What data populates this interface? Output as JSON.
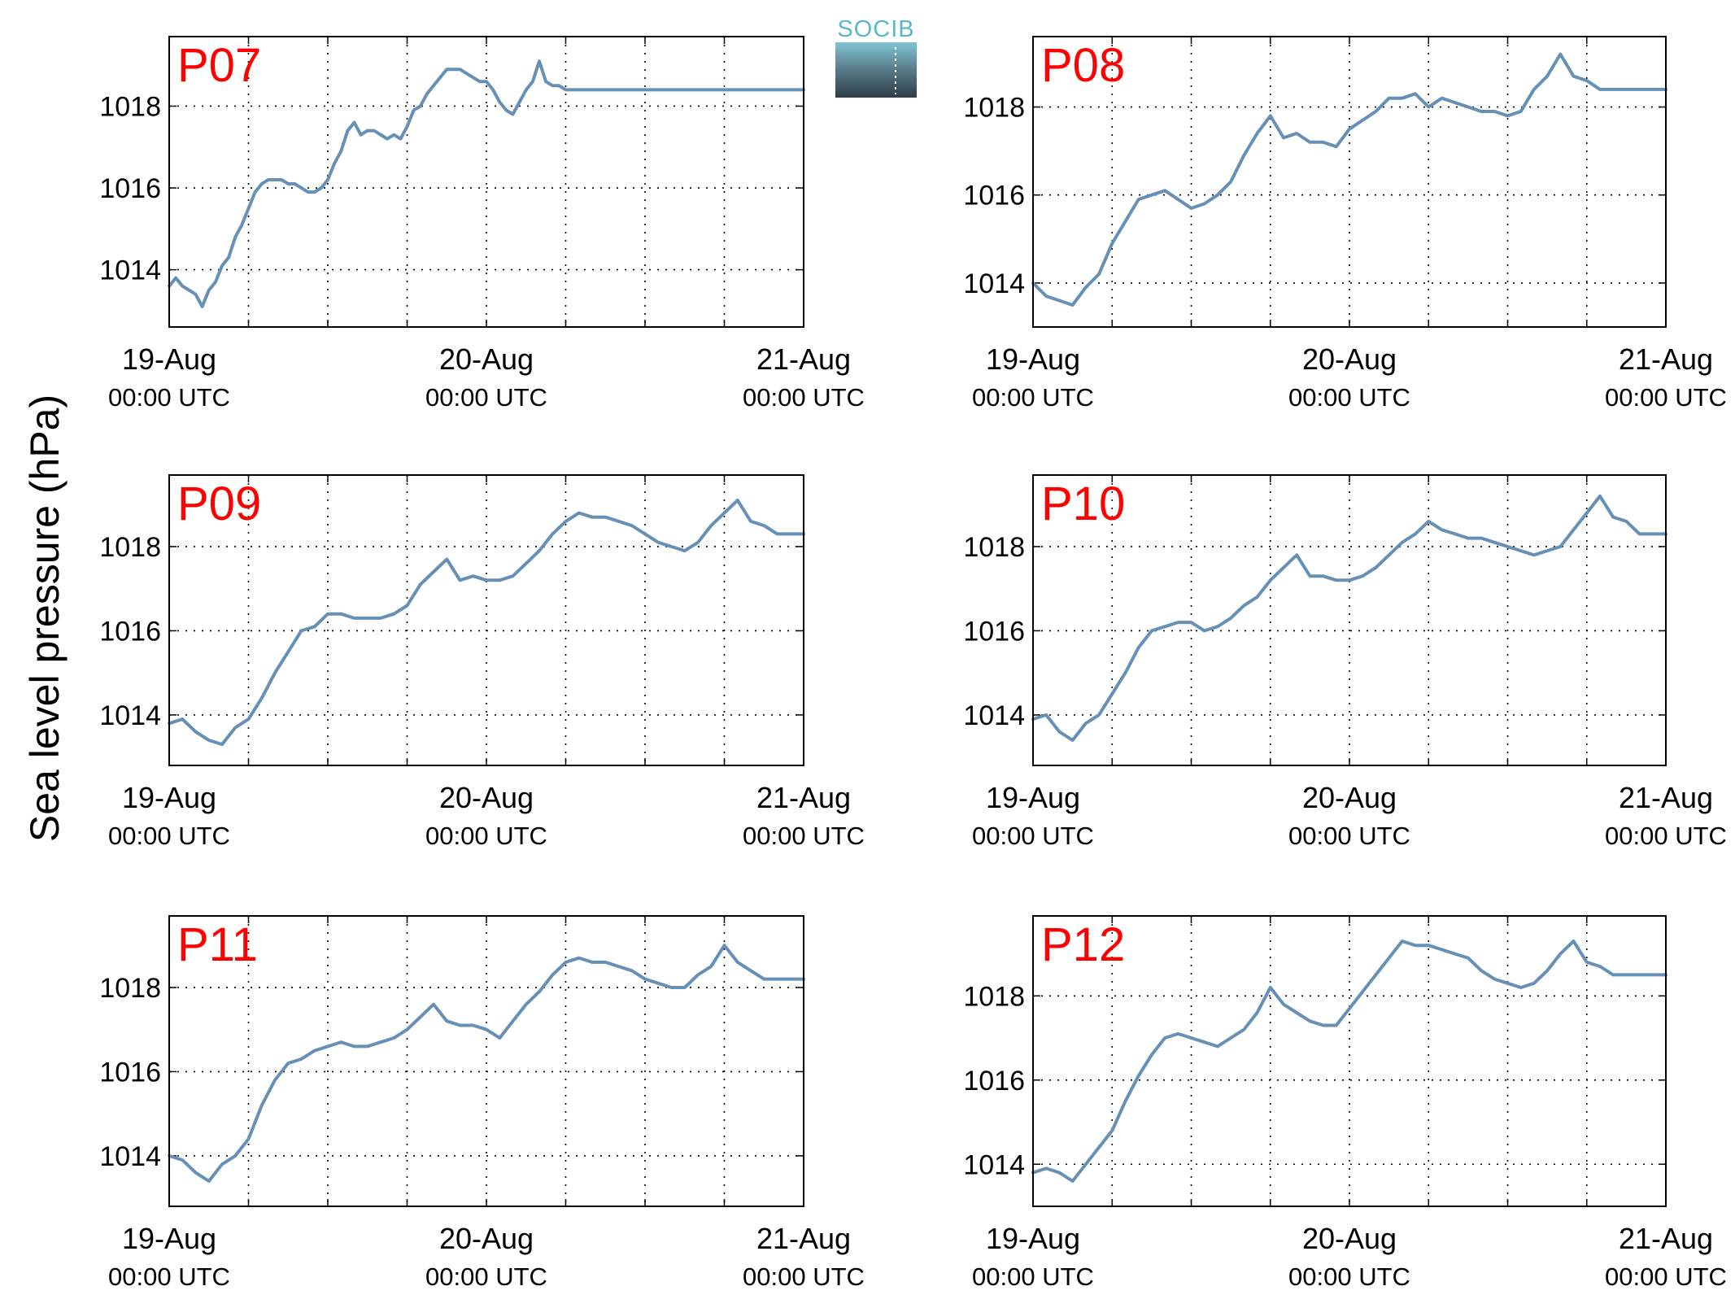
{
  "figure": {
    "ylabel": "Sea level pressure (hPa)",
    "logo_text": "SOCIB",
    "line_color": "#6690b5",
    "panel_label_color": "#ff0000",
    "grid": true
  },
  "chart_data": [
    {
      "type": "line",
      "title": "P07",
      "xlim": [
        0,
        48
      ],
      "ylim": [
        1012.6,
        1019.7
      ],
      "xticks": [
        0,
        24,
        48
      ],
      "xticklabels": [
        [
          "19-Aug",
          "00:00 UTC"
        ],
        [
          "20-Aug",
          "00:00 UTC"
        ],
        [
          "21-Aug",
          "00:00 UTC"
        ]
      ],
      "yticks": [
        1014,
        1016,
        1018
      ],
      "yticklabels": [
        "1014",
        "1016",
        "1018"
      ],
      "series": [
        {
          "x": [
            0,
            0.5,
            1,
            1.5,
            2,
            2.5,
            3,
            3.5,
            4,
            4.5,
            5,
            5.5,
            6,
            6.5,
            7,
            7.5,
            8,
            8.5,
            9,
            9.5,
            10,
            10.5,
            11,
            11.5,
            12,
            12.5,
            13,
            13.5,
            14,
            14.5,
            15,
            15.5,
            16,
            16.5,
            17,
            17.5,
            18,
            18.5,
            19,
            19.5,
            20,
            20.5,
            21,
            21.5,
            22,
            22.5,
            23,
            23.5,
            24,
            24.5,
            25,
            25.5,
            26,
            26.5,
            27,
            27.5,
            28,
            28.5,
            29,
            29.5,
            30,
            30.5,
            31,
            31.5,
            32,
            32.5,
            33,
            33.5,
            34,
            34.5,
            35,
            35.5,
            36,
            36.5,
            37,
            37.5,
            38,
            38.5,
            39,
            39.5,
            40,
            40.5,
            41,
            41.5,
            42,
            42.5,
            43,
            43.5,
            44,
            44.5,
            45,
            45.5,
            46,
            46.5,
            47,
            47.5,
            48
          ],
          "y": [
            1013.6,
            1013.8,
            1013.6,
            1013.5,
            1013.4,
            1013.1,
            1013.5,
            1013.7,
            1014.1,
            1014.3,
            1014.8,
            1015.1,
            1015.5,
            1015.9,
            1016.1,
            1016.2,
            1016.2,
            1016.2,
            1016.1,
            1016.1,
            1016.0,
            1015.9,
            1015.9,
            1016.0,
            1016.2,
            1016.6,
            1016.9,
            1017.4,
            1017.6,
            1017.3,
            1017.4,
            1017.4,
            1017.3,
            1017.2,
            1017.3,
            1017.2,
            1017.5,
            1017.9,
            1018.0,
            1018.3,
            1018.5,
            1018.7,
            1018.9,
            1018.9,
            1018.9,
            1018.8,
            1018.7,
            1018.6,
            1018.6,
            1018.4,
            1018.1,
            1017.9,
            1017.8,
            1018.1,
            1018.4,
            1018.6,
            1019.1,
            1018.6,
            1018.5,
            1018.5,
            1018.4,
            1018.4,
            1018.4,
            1018.4,
            1018.4,
            1018.4,
            1018.4,
            1018.4,
            1018.4,
            1018.4,
            1018.4,
            1018.4,
            1018.4,
            1018.4,
            1018.4,
            1018.4,
            1018.4,
            1018.4,
            1018.4,
            1018.4,
            1018.4,
            1018.4,
            1018.4,
            1018.4,
            1018.4,
            1018.4,
            1018.4,
            1018.4,
            1018.4,
            1018.4,
            1018.4,
            1018.4,
            1018.4,
            1018.4,
            1018.4,
            1018.4,
            1018.4
          ]
        }
      ]
    },
    {
      "type": "line",
      "title": "P08",
      "xlim": [
        0,
        48
      ],
      "ylim": [
        1013.0,
        1019.6
      ],
      "xticks": [
        0,
        24,
        48
      ],
      "xticklabels": [
        [
          "19-Aug",
          "00:00 UTC"
        ],
        [
          "20-Aug",
          "00:00 UTC"
        ],
        [
          "21-Aug",
          "00:00 UTC"
        ]
      ],
      "yticks": [
        1014,
        1016,
        1018
      ],
      "yticklabels": [
        "1014",
        "1016",
        "1018"
      ],
      "series": [
        {
          "x": [
            0,
            1,
            2,
            3,
            4,
            5,
            6,
            7,
            8,
            9,
            10,
            11,
            12,
            13,
            14,
            15,
            16,
            17,
            18,
            19,
            20,
            21,
            22,
            23,
            24,
            25,
            26,
            27,
            28,
            29,
            30,
            31,
            32,
            33,
            34,
            35,
            36,
            37,
            38,
            39,
            40,
            41,
            42,
            43,
            44,
            45,
            46,
            47,
            48
          ],
          "y": [
            1014.0,
            1013.7,
            1013.6,
            1013.5,
            1013.9,
            1014.2,
            1014.9,
            1015.4,
            1015.9,
            1016.0,
            1016.1,
            1015.9,
            1015.7,
            1015.8,
            1016.0,
            1016.3,
            1016.9,
            1017.4,
            1017.8,
            1017.3,
            1017.4,
            1017.2,
            1017.2,
            1017.1,
            1017.5,
            1017.7,
            1017.9,
            1018.2,
            1018.2,
            1018.3,
            1018.0,
            1018.2,
            1018.1,
            1018.0,
            1017.9,
            1017.9,
            1017.8,
            1017.9,
            1018.4,
            1018.7,
            1019.2,
            1018.7,
            1018.6,
            1018.4,
            1018.4,
            1018.4,
            1018.4,
            1018.4,
            1018.4
          ]
        }
      ]
    },
    {
      "type": "line",
      "title": "P09",
      "xlim": [
        0,
        48
      ],
      "ylim": [
        1012.8,
        1019.7
      ],
      "xticks": [
        0,
        24,
        48
      ],
      "xticklabels": [
        [
          "19-Aug",
          "00:00 UTC"
        ],
        [
          "20-Aug",
          "00:00 UTC"
        ],
        [
          "21-Aug",
          "00:00 UTC"
        ]
      ],
      "yticks": [
        1014,
        1016,
        1018
      ],
      "yticklabels": [
        "1014",
        "1016",
        "1018"
      ],
      "series": [
        {
          "x": [
            0,
            1,
            2,
            3,
            4,
            5,
            6,
            7,
            8,
            9,
            10,
            11,
            12,
            13,
            14,
            15,
            16,
            17,
            18,
            19,
            20,
            21,
            22,
            23,
            24,
            25,
            26,
            27,
            28,
            29,
            30,
            31,
            32,
            33,
            34,
            35,
            36,
            37,
            38,
            39,
            40,
            41,
            42,
            43,
            44,
            45,
            46,
            47,
            48
          ],
          "y": [
            1013.8,
            1013.9,
            1013.6,
            1013.4,
            1013.3,
            1013.7,
            1013.9,
            1014.4,
            1015.0,
            1015.5,
            1016.0,
            1016.1,
            1016.4,
            1016.4,
            1016.3,
            1016.3,
            1016.3,
            1016.4,
            1016.6,
            1017.1,
            1017.4,
            1017.7,
            1017.2,
            1017.3,
            1017.2,
            1017.2,
            1017.3,
            1017.6,
            1017.9,
            1018.3,
            1018.6,
            1018.8,
            1018.7,
            1018.7,
            1018.6,
            1018.5,
            1018.3,
            1018.1,
            1018.0,
            1017.9,
            1018.1,
            1018.5,
            1018.8,
            1019.1,
            1018.6,
            1018.5,
            1018.3,
            1018.3,
            1018.3
          ]
        }
      ]
    },
    {
      "type": "line",
      "title": "P10",
      "xlim": [
        0,
        48
      ],
      "ylim": [
        1012.8,
        1019.7
      ],
      "xticks": [
        0,
        24,
        48
      ],
      "xticklabels": [
        [
          "19-Aug",
          "00:00 UTC"
        ],
        [
          "20-Aug",
          "00:00 UTC"
        ],
        [
          "21-Aug",
          "00:00 UTC"
        ]
      ],
      "yticks": [
        1014,
        1016,
        1018
      ],
      "yticklabels": [
        "1014",
        "1016",
        "1018"
      ],
      "series": [
        {
          "x": [
            0,
            1,
            2,
            3,
            4,
            5,
            6,
            7,
            8,
            9,
            10,
            11,
            12,
            13,
            14,
            15,
            16,
            17,
            18,
            19,
            20,
            21,
            22,
            23,
            24,
            25,
            26,
            27,
            28,
            29,
            30,
            31,
            32,
            33,
            34,
            35,
            36,
            37,
            38,
            39,
            40,
            41,
            42,
            43,
            44,
            45,
            46,
            47,
            48
          ],
          "y": [
            1013.9,
            1014.0,
            1013.6,
            1013.4,
            1013.8,
            1014.0,
            1014.5,
            1015.0,
            1015.6,
            1016.0,
            1016.1,
            1016.2,
            1016.2,
            1016.0,
            1016.1,
            1016.3,
            1016.6,
            1016.8,
            1017.2,
            1017.5,
            1017.8,
            1017.3,
            1017.3,
            1017.2,
            1017.2,
            1017.3,
            1017.5,
            1017.8,
            1018.1,
            1018.3,
            1018.6,
            1018.4,
            1018.3,
            1018.2,
            1018.2,
            1018.1,
            1018.0,
            1017.9,
            1017.8,
            1017.9,
            1018.0,
            1018.4,
            1018.8,
            1019.2,
            1018.7,
            1018.6,
            1018.3,
            1018.3,
            1018.3
          ]
        }
      ]
    },
    {
      "type": "line",
      "title": "P11",
      "xlim": [
        0,
        48
      ],
      "ylim": [
        1012.8,
        1019.7
      ],
      "xticks": [
        0,
        24,
        48
      ],
      "xticklabels": [
        [
          "19-Aug",
          "00:00 UTC"
        ],
        [
          "20-Aug",
          "00:00 UTC"
        ],
        [
          "21-Aug",
          "00:00 UTC"
        ]
      ],
      "yticks": [
        1014,
        1016,
        1018
      ],
      "yticklabels": [
        "1014",
        "1016",
        "1018"
      ],
      "series": [
        {
          "x": [
            0,
            1,
            2,
            3,
            4,
            5,
            6,
            7,
            8,
            9,
            10,
            11,
            12,
            13,
            14,
            15,
            16,
            17,
            18,
            19,
            20,
            21,
            22,
            23,
            24,
            25,
            26,
            27,
            28,
            29,
            30,
            31,
            32,
            33,
            34,
            35,
            36,
            37,
            38,
            39,
            40,
            41,
            42,
            43,
            44,
            45,
            46,
            47,
            48
          ],
          "y": [
            1014.0,
            1013.9,
            1013.6,
            1013.4,
            1013.8,
            1014.0,
            1014.4,
            1015.2,
            1015.8,
            1016.2,
            1016.3,
            1016.5,
            1016.6,
            1016.7,
            1016.6,
            1016.6,
            1016.7,
            1016.8,
            1017.0,
            1017.3,
            1017.6,
            1017.2,
            1017.1,
            1017.1,
            1017.0,
            1016.8,
            1017.2,
            1017.6,
            1017.9,
            1018.3,
            1018.6,
            1018.7,
            1018.6,
            1018.6,
            1018.5,
            1018.4,
            1018.2,
            1018.1,
            1018.0,
            1018.0,
            1018.3,
            1018.5,
            1019.0,
            1018.6,
            1018.4,
            1018.2,
            1018.2,
            1018.2,
            1018.2
          ]
        }
      ]
    },
    {
      "type": "line",
      "title": "P12",
      "xlim": [
        0,
        48
      ],
      "ylim": [
        1013.0,
        1019.9
      ],
      "xticks": [
        0,
        24,
        48
      ],
      "xticklabels": [
        [
          "19-Aug",
          "00:00 UTC"
        ],
        [
          "20-Aug",
          "00:00 UTC"
        ],
        [
          "21-Aug",
          "00:00 UTC"
        ]
      ],
      "yticks": [
        1014,
        1016,
        1018
      ],
      "yticklabels": [
        "1014",
        "1016",
        "1018"
      ],
      "series": [
        {
          "x": [
            0,
            1,
            2,
            3,
            4,
            5,
            6,
            7,
            8,
            9,
            10,
            11,
            12,
            13,
            14,
            15,
            16,
            17,
            18,
            19,
            20,
            21,
            22,
            23,
            24,
            25,
            26,
            27,
            28,
            29,
            30,
            31,
            32,
            33,
            34,
            35,
            36,
            37,
            38,
            39,
            40,
            41,
            42,
            43,
            44,
            45,
            46,
            47,
            48
          ],
          "y": [
            1013.8,
            1013.9,
            1013.8,
            1013.6,
            1014.0,
            1014.4,
            1014.8,
            1015.5,
            1016.1,
            1016.6,
            1017.0,
            1017.1,
            1017.0,
            1016.9,
            1016.8,
            1017.0,
            1017.2,
            1017.6,
            1018.2,
            1017.8,
            1017.6,
            1017.4,
            1017.3,
            1017.3,
            1017.7,
            1018.1,
            1018.5,
            1018.9,
            1019.3,
            1019.2,
            1019.2,
            1019.1,
            1019.0,
            1018.9,
            1018.6,
            1018.4,
            1018.3,
            1018.2,
            1018.3,
            1018.6,
            1019.0,
            1019.3,
            1018.8,
            1018.7,
            1018.5,
            1018.5,
            1018.5,
            1018.5,
            1018.5
          ]
        }
      ]
    }
  ]
}
